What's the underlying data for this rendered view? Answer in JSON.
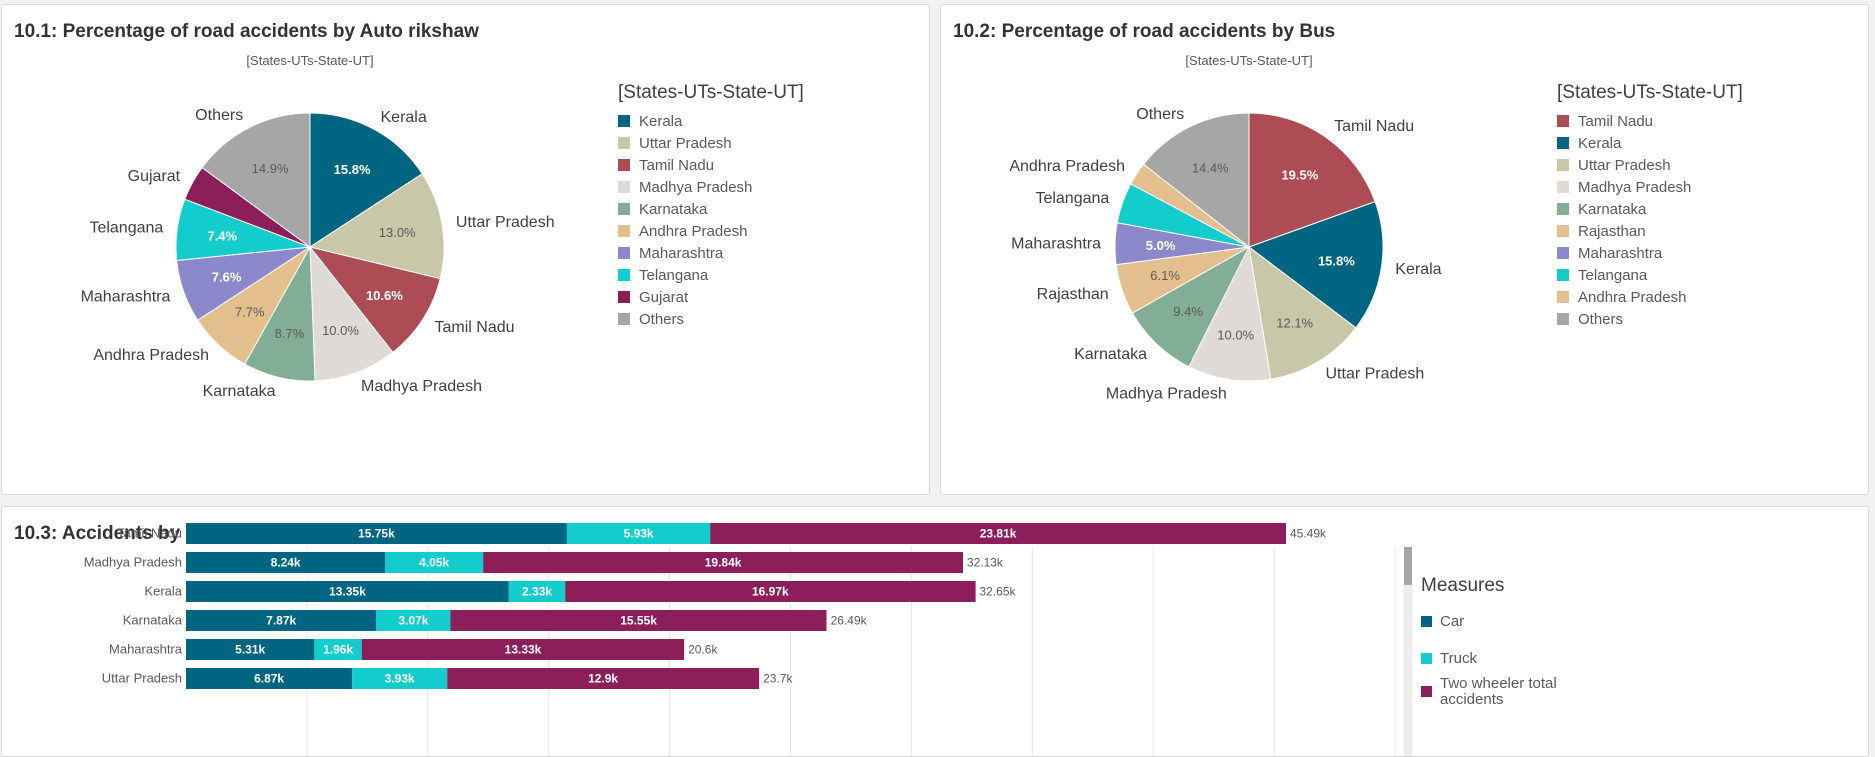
{
  "colors": {
    "Kerala": "#006580",
    "Uttar Pradesh": "#c8c8a9",
    "Tamil Nadu": "#ae4c56",
    "Madhya Pradesh": "#e0dad6",
    "Karnataka": "#82ae96",
    "Andhra Pradesh": "#e3bf8d",
    "Maharashtra": "#8b88cc",
    "Telangana": "#12cdcb",
    "Gujarat": "#8c1e59",
    "Rajasthan": "#e3bf8d",
    "Others": "#a6a6a6",
    "car": "#006580",
    "truck": "#12cdcb",
    "two_wheeler": "#8c1e59"
  },
  "chart_data": [
    {
      "type": "pie",
      "title": "10.1: Percentage of road accidents by Auto rikshaw",
      "subtitle": "[States-UTs-State-UT]",
      "legend_title": "[States-UTs-State-UT]",
      "legend_position": "right",
      "slices": [
        {
          "label": "Kerala",
          "value": 15.8,
          "value_label": "15.8%"
        },
        {
          "label": "Uttar Pradesh",
          "value": 13.0,
          "value_label": "13.0%"
        },
        {
          "label": "Tamil Nadu",
          "value": 10.6,
          "value_label": "10.6%"
        },
        {
          "label": "Madhya Pradesh",
          "value": 10.0,
          "value_label": "10.0%"
        },
        {
          "label": "Karnataka",
          "value": 8.7,
          "value_label": "8.7%"
        },
        {
          "label": "Andhra Pradesh",
          "value": 7.7,
          "value_label": "7.7%"
        },
        {
          "label": "Maharashtra",
          "value": 7.6,
          "value_label": "7.6%"
        },
        {
          "label": "Telangana",
          "value": 7.4,
          "value_label": "7.4%"
        },
        {
          "label": "Gujarat",
          "value": 4.3,
          "value_label": ""
        },
        {
          "label": "Others",
          "value": 14.9,
          "value_label": "14.9%"
        }
      ]
    },
    {
      "type": "pie",
      "title": "10.2: Percentage of road accidents by Bus",
      "subtitle": "[States-UTs-State-UT]",
      "legend_title": "[States-UTs-State-UT]",
      "legend_position": "right",
      "slices": [
        {
          "label": "Tamil Nadu",
          "value": 19.5,
          "value_label": "19.5%"
        },
        {
          "label": "Kerala",
          "value": 15.8,
          "value_label": "15.8%"
        },
        {
          "label": "Uttar Pradesh",
          "value": 12.1,
          "value_label": "12.1%"
        },
        {
          "label": "Madhya Pradesh",
          "value": 10.0,
          "value_label": "10.0%"
        },
        {
          "label": "Karnataka",
          "value": 9.4,
          "value_label": "9.4%"
        },
        {
          "label": "Rajasthan",
          "value": 6.1,
          "value_label": "6.1%"
        },
        {
          "label": "Maharashtra",
          "value": 5.0,
          "value_label": "5.0%"
        },
        {
          "label": "Telangana",
          "value": 4.9,
          "value_label": ""
        },
        {
          "label": "Andhra Pradesh",
          "value": 2.8,
          "value_label": ""
        },
        {
          "label": "Others",
          "value": 14.4,
          "value_label": "14.4%"
        }
      ]
    },
    {
      "type": "bar",
      "orientation": "horizontal",
      "stacked": true,
      "title": "10.3: Accidents by car truck and two wheelers",
      "legend_title": "Measures",
      "legend_position": "right",
      "xlim": [
        0,
        55000
      ],
      "grid": true,
      "categories": [
        "Tamil Nadu",
        "Madhya Pradesh",
        "Kerala",
        "Karnataka",
        "Maharashtra",
        "Uttar Pradesh"
      ],
      "series": [
        {
          "name": "Car",
          "color_key": "car",
          "values": [
            15750,
            8240,
            13350,
            7870,
            5310,
            6870
          ],
          "labels": [
            "15.75k",
            "8.24k",
            "13.35k",
            "7.87k",
            "5.31k",
            "6.87k"
          ]
        },
        {
          "name": "Truck",
          "color_key": "truck",
          "values": [
            5930,
            4050,
            2330,
            3070,
            1960,
            3930
          ],
          "labels": [
            "5.93k",
            "4.05k",
            "2.33k",
            "3.07k",
            "1.96k",
            "3.93k"
          ]
        },
        {
          "name": "Two wheeler total accidents",
          "color_key": "two_wheeler",
          "values": [
            23810,
            19840,
            16970,
            15550,
            13330,
            12900
          ],
          "labels": [
            "23.81k",
            "19.84k",
            "16.97k",
            "15.55k",
            "13.33k",
            "12.9k"
          ]
        }
      ],
      "totals": [
        "45.49k",
        "32.13k",
        "32.65k",
        "26.49k",
        "20.6k",
        "23.7k"
      ]
    }
  ]
}
